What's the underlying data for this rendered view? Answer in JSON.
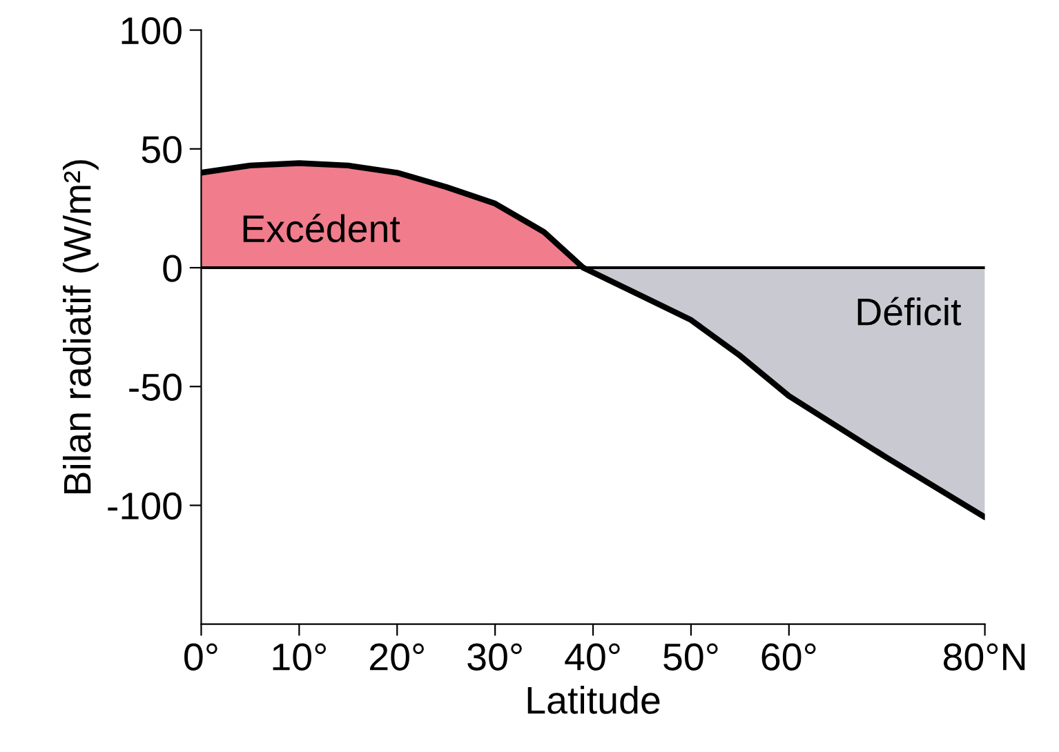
{
  "chart_data": {
    "type": "area",
    "xlabel": "Latitude",
    "ylabel": "Bilan radiatif (W/m²)",
    "series": [
      {
        "color": "#f07c8c",
        "x": [
          0,
          5,
          10,
          15,
          20,
          25,
          30,
          35,
          39
        ],
        "values": [
          40,
          43,
          44,
          43,
          40,
          34,
          27,
          15,
          0
        ]
      },
      {
        "color": "#c9c9d1",
        "x": [
          39,
          45,
          50,
          55,
          60,
          70,
          80
        ],
        "values": [
          0,
          -12,
          -22,
          -37,
          -54,
          -80,
          -105
        ]
      }
    ],
    "xlim": [
      0,
      80
    ],
    "xticks": [
      {
        "value": 0,
        "label": "0°"
      },
      {
        "value": 10,
        "label": "10°"
      },
      {
        "value": 20,
        "label": "20°"
      },
      {
        "value": 30,
        "label": "30°"
      },
      {
        "value": 40,
        "label": "40°"
      },
      {
        "value": 50,
        "label": "50°"
      },
      {
        "value": 60,
        "label": "60°"
      },
      {
        "value": 80,
        "label": "80°N"
      }
    ],
    "ylim": [
      -150,
      100
    ],
    "yticks": [
      100,
      50,
      0,
      -50,
      -100
    ],
    "ref_lines": [
      {
        "axis": "y",
        "value": 0,
        "color": "#000000"
      }
    ],
    "annotations": [
      "Excédent",
      "Déficit"
    ],
    "grid": false,
    "legend": false
  }
}
